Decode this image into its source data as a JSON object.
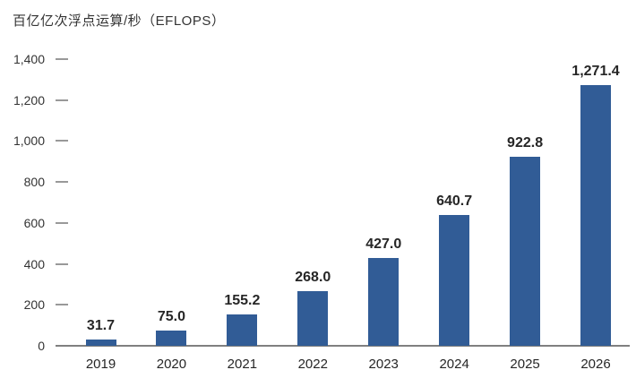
{
  "chart_data": {
    "type": "bar",
    "title": "百亿亿次浮点运算/秒（EFLOPS）",
    "ylabel": "百亿亿次浮点运算/秒（EFLOPS）",
    "xlabel": "",
    "categories": [
      "2019",
      "2020",
      "2021",
      "2022",
      "2023",
      "2024",
      "2025",
      "2026"
    ],
    "values": [
      31.7,
      75.0,
      155.2,
      268.0,
      427.0,
      640.7,
      922.8,
      1271.4
    ],
    "value_labels": [
      "31.7",
      "75.0",
      "155.2",
      "268.0",
      "427.0",
      "640.7",
      "922.8",
      "1,271.4"
    ],
    "ylim": [
      0,
      1400
    ],
    "yticks": [
      0,
      200,
      400,
      600,
      800,
      1000,
      1200,
      1400
    ],
    "ytick_labels": [
      "0",
      "200",
      "400",
      "600",
      "800",
      "1,000",
      "1,200",
      "1,400"
    ],
    "grid": false,
    "legend": "none",
    "colors": {
      "bar": "#315c96",
      "axis_line": "#808080",
      "tick_dash": "#999999",
      "tick_text": "#333333",
      "value_text": "#262626"
    }
  }
}
